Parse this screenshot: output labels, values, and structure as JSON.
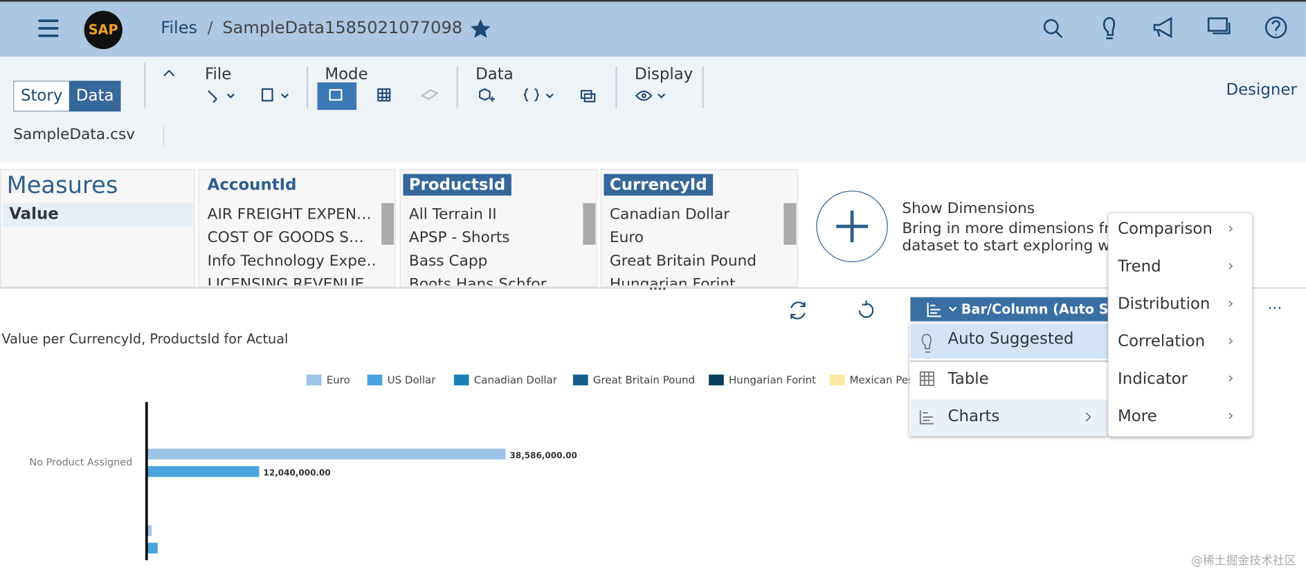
{
  "header": {
    "logo": "SAP",
    "root": "Files",
    "separator": "/",
    "file": "SampleData1585021077098"
  },
  "toolbar": {
    "story": "Story",
    "data": "Data",
    "groups": [
      "File",
      "Mode",
      "Data",
      "Display"
    ],
    "designer": "Designer",
    "dataset": "SampleData.csv"
  },
  "measures": {
    "title": "Measures",
    "items": [
      "Value"
    ]
  },
  "dimensions": [
    {
      "title": "AccountId",
      "items": [
        "AIR FREIGHT EXPEN…",
        "COST OF GOODS S…",
        "Info Technology Expe…",
        "LICENSING REVENUE"
      ]
    },
    {
      "title": "ProductsId",
      "items": [
        "All Terrain II",
        "APSP - Shorts",
        "Bass Capp",
        "Boots Hans Schfor"
      ]
    },
    {
      "title": "CurrencyId",
      "items": [
        "Canadian Dollar",
        "Euro",
        "Great Britain Pound",
        "Hungarian Forint"
      ]
    }
  ],
  "show_dimensions": {
    "title": "Show Dimensions",
    "lines": [
      "Bring in more dimensions fro",
      "dataset to start exploring wit"
    ]
  },
  "chart_button": "Bar/Column (Auto Sugg",
  "menu": [
    "Auto Suggested",
    "Table",
    "Charts"
  ],
  "submenu": [
    "Comparison",
    "Trend",
    "Distribution",
    "Correlation",
    "Indicator",
    "More"
  ],
  "watermark": "@稀土掘金技术社区",
  "chart_data": {
    "type": "bar",
    "orientation": "horizontal",
    "title": "Value per CurrencyId, ProductsId for Actual",
    "categories": [
      "No Product Assigned",
      null
    ],
    "series": [
      {
        "name": "Euro",
        "color": "#9ec4e8",
        "values": [
          38586000,
          450000
        ],
        "value_labels": [
          "38,586,000.00",
          null
        ]
      },
      {
        "name": "US Dollar",
        "color": "#4aa3dc",
        "values": [
          12040000,
          1100000
        ],
        "value_labels": [
          "12,040,000.00",
          null
        ]
      },
      {
        "name": "Canadian Dollar",
        "color": "#1b80b6",
        "values": [
          null,
          null
        ]
      },
      {
        "name": "Great Britain Pound",
        "color": "#125f8b",
        "values": [
          null,
          null
        ]
      },
      {
        "name": "Hungarian Forint",
        "color": "#0c3e5c",
        "values": [
          null,
          null
        ]
      },
      {
        "name": "Mexican Pes",
        "color": "#fde8a2",
        "values": [
          null,
          null
        ]
      }
    ]
  }
}
